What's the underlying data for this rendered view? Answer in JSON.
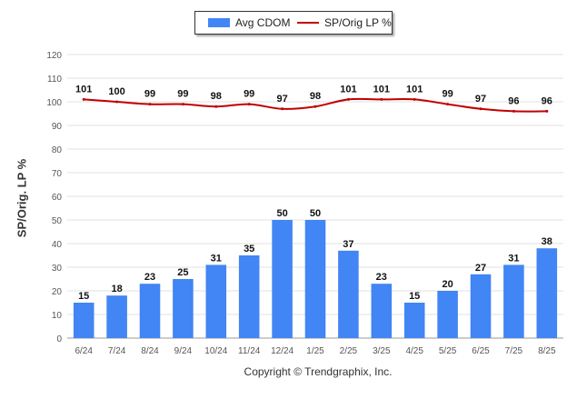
{
  "chart_data": {
    "type": "bar",
    "categories": [
      "6/24",
      "7/24",
      "8/24",
      "9/24",
      "10/24",
      "11/24",
      "12/24",
      "1/25",
      "2/25",
      "3/25",
      "4/25",
      "5/25",
      "6/25",
      "7/25",
      "8/25"
    ],
    "series": [
      {
        "name": "Avg CDOM",
        "type": "bar",
        "color": "#4285f4",
        "values": [
          15,
          18,
          23,
          25,
          31,
          35,
          50,
          50,
          37,
          23,
          15,
          20,
          27,
          31,
          38
        ]
      },
      {
        "name": "SP/Orig LP %",
        "type": "line",
        "color": "#c00000",
        "values": [
          101,
          100,
          99,
          99,
          98,
          99,
          97,
          98,
          101,
          101,
          101,
          99,
          97,
          96,
          96
        ]
      }
    ],
    "ylabel": "SP/Orig. LP %",
    "xlabel": "",
    "ylim": [
      0,
      120
    ],
    "yticks": [
      0,
      10,
      20,
      30,
      40,
      50,
      60,
      70,
      80,
      90,
      100,
      110,
      120
    ],
    "grid": true,
    "legend": "top-center"
  },
  "legend": {
    "bar_label": "Avg CDOM",
    "line_label": "SP/Orig LP %"
  },
  "footer": "Copyright © Trendgraphix, Inc."
}
